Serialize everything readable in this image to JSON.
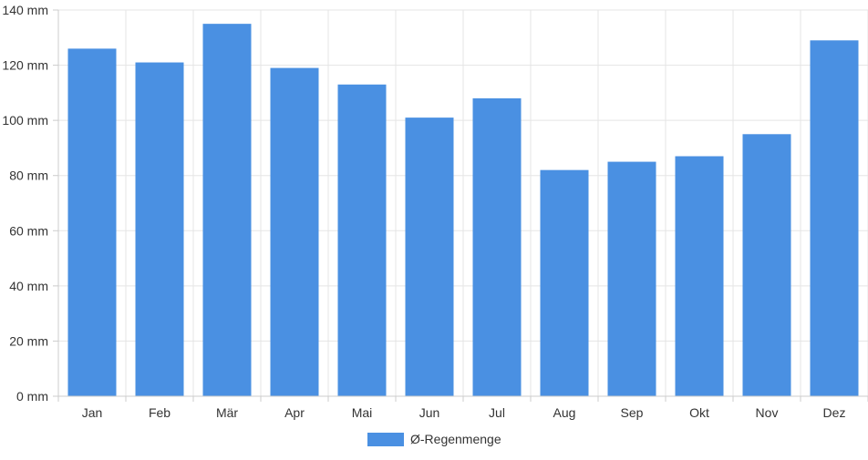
{
  "chart_data": {
    "type": "bar",
    "categories": [
      "Jan",
      "Feb",
      "Mär",
      "Apr",
      "Mai",
      "Jun",
      "Jul",
      "Aug",
      "Sep",
      "Okt",
      "Nov",
      "Dez"
    ],
    "series": [
      {
        "name": "Ø-Regenmenge",
        "values": [
          126,
          121,
          135,
          119,
          113,
          101,
          108,
          82,
          85,
          87,
          95,
          129
        ],
        "color": "#4a90e2"
      }
    ],
    "y_ticks": [
      "0 mm",
      "20 mm",
      "40 mm",
      "60 mm",
      "80 mm",
      "100 mm",
      "120 mm",
      "140 mm"
    ],
    "ylim": [
      0,
      140
    ],
    "grid": true,
    "legend_position": "bottom"
  }
}
